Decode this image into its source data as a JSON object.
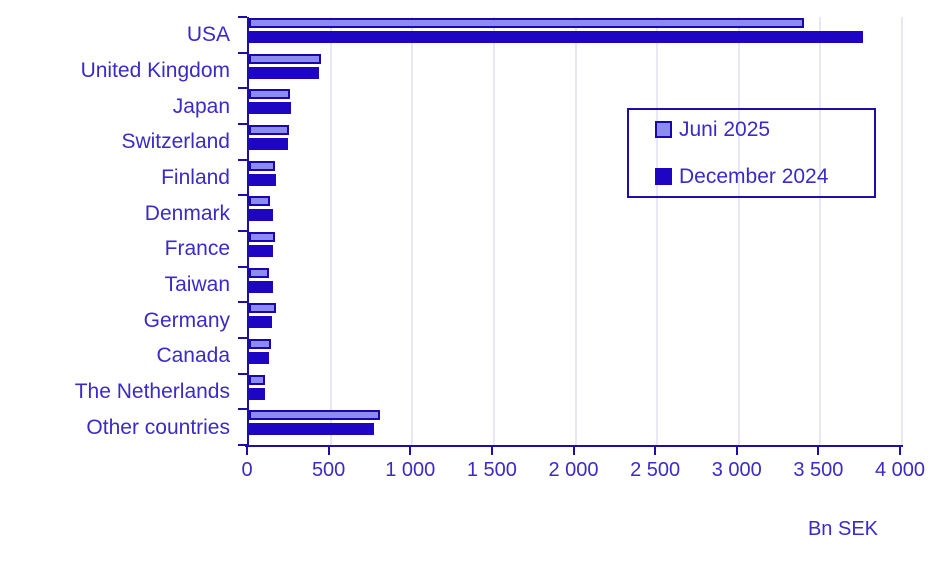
{
  "chart_data": {
    "type": "bar",
    "orientation": "horizontal",
    "title": "",
    "xlabel": "Bn SEK",
    "ylabel": "",
    "xlim": [
      0,
      4000
    ],
    "grid": true,
    "legend_position": "upper right",
    "categories": [
      "USA",
      "United Kingdom",
      "Japan",
      "Switzerland",
      "Finland",
      "Denmark",
      "France",
      "Taiwan",
      "Germany",
      "Canada",
      "The Netherlands",
      "Other countries"
    ],
    "series": [
      {
        "name": "Juni 2025",
        "color": "#8C8CF0",
        "border_color": "#1B05AE",
        "values": [
          3400,
          440,
          250,
          245,
          160,
          130,
          158,
          125,
          168,
          132,
          100,
          800
        ]
      },
      {
        "name": "December 2024",
        "color": "#1E05C3",
        "border_color": "#1E05C3",
        "values": [
          3760,
          430,
          258,
          238,
          168,
          150,
          147,
          147,
          140,
          122,
          96,
          767
        ]
      }
    ],
    "xticks": [
      0,
      500,
      1000,
      1500,
      2000,
      2500,
      3000,
      3500,
      4000
    ],
    "xtick_labels": [
      "0",
      "500",
      "1 000",
      "1 500",
      "2 000",
      "2 500",
      "3 000",
      "3 500",
      "4 000"
    ]
  },
  "colors": {
    "axis": "#1E0CAC",
    "text": "#3A2BC8",
    "gridline": "#E7E7F8",
    "background": "#FFFFFF"
  }
}
